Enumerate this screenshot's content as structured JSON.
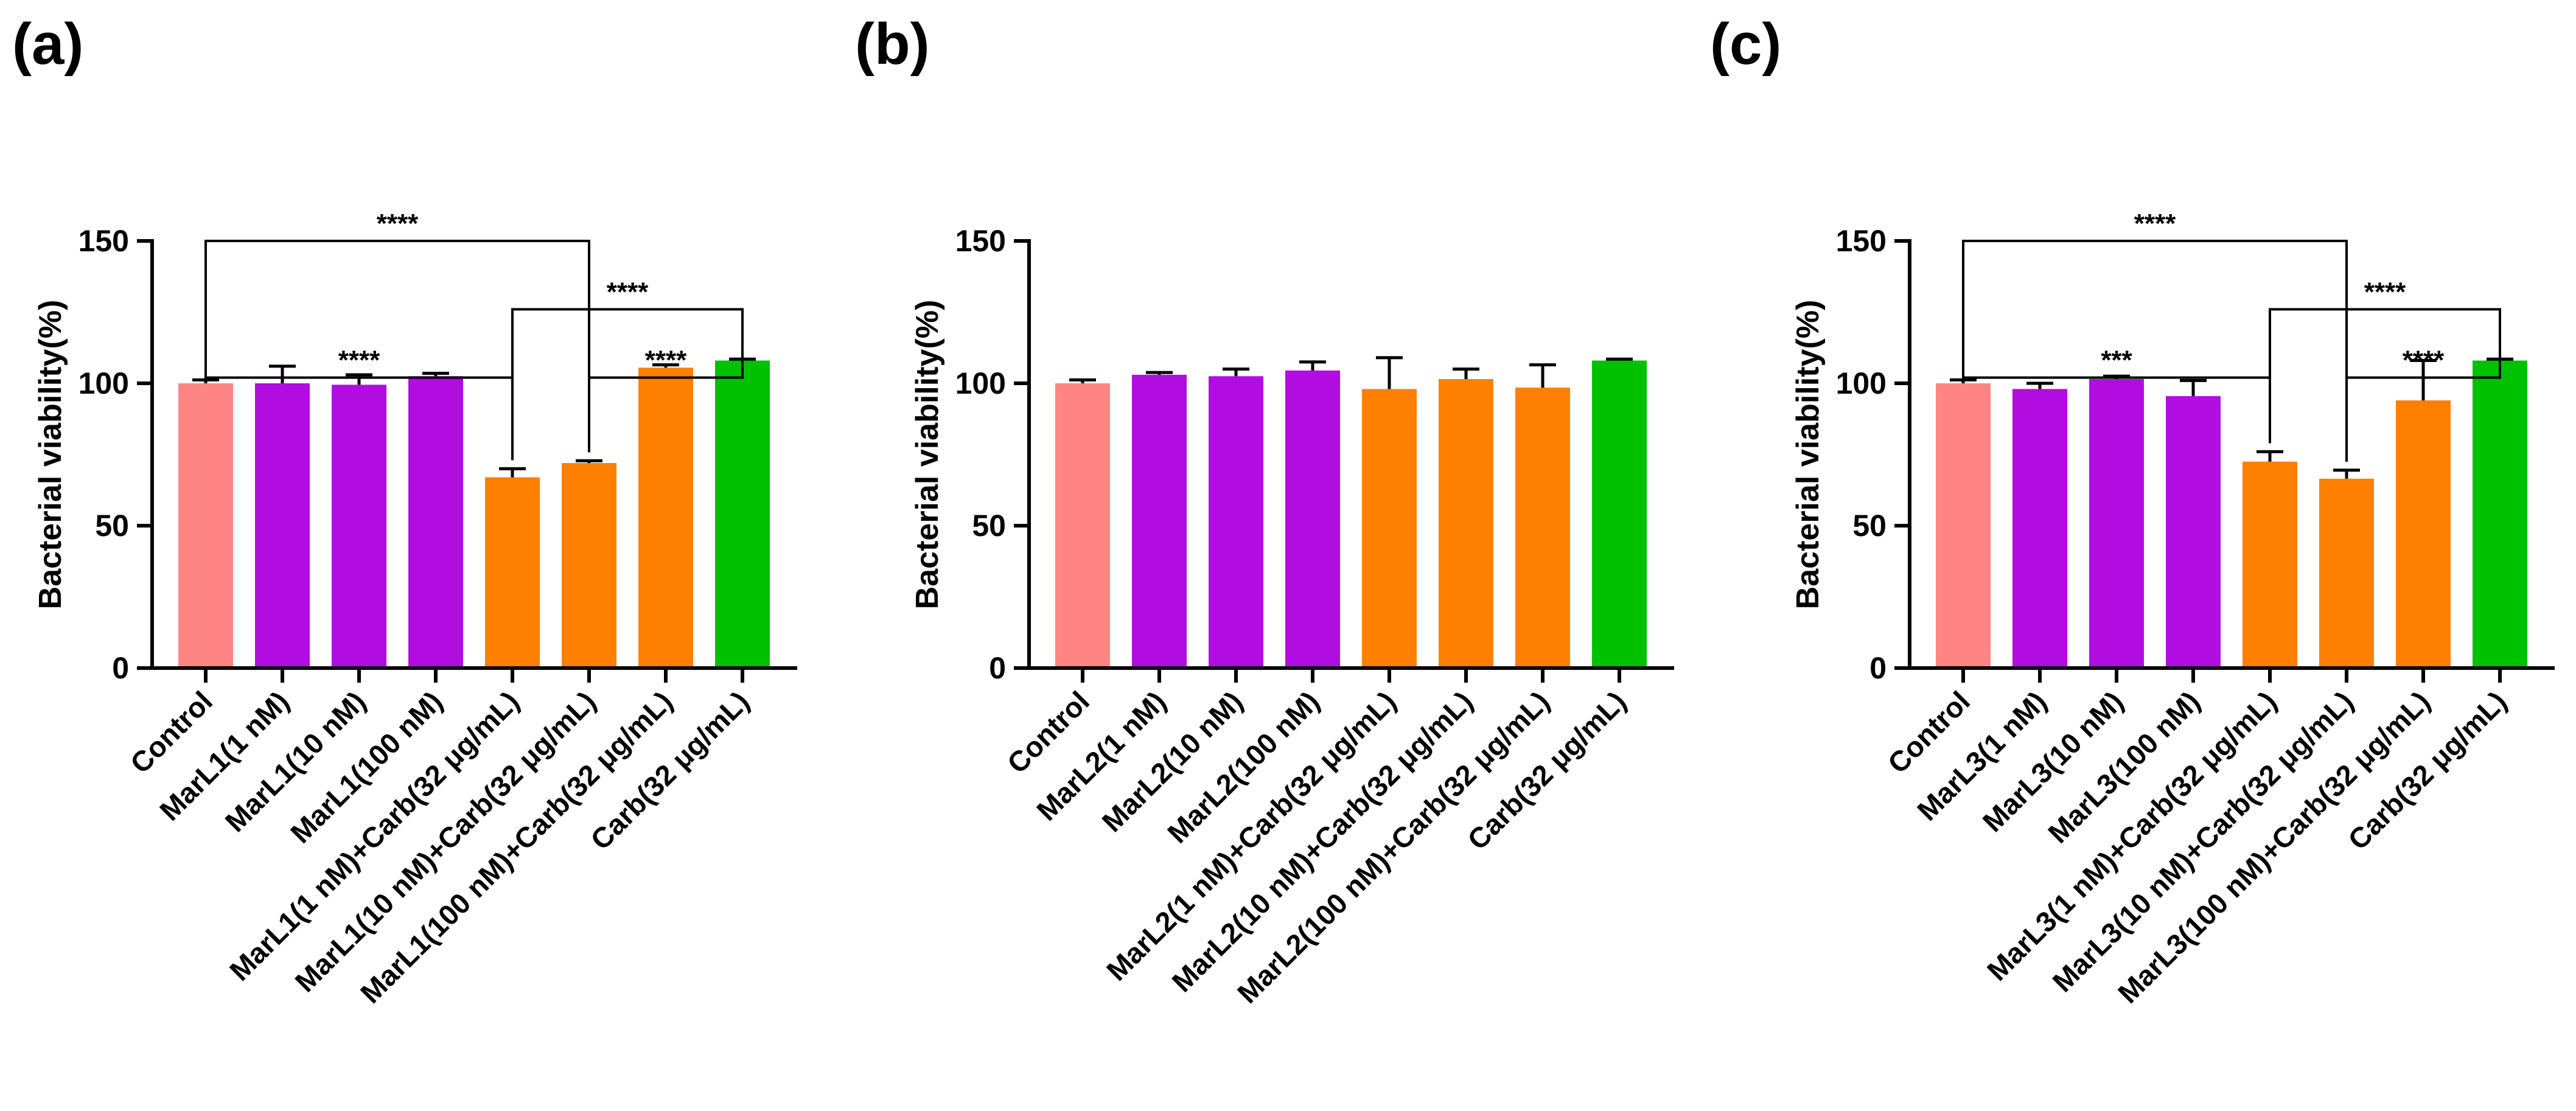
{
  "colors": {
    "control": "#FF8585",
    "marl": "#B10DE1",
    "combo": "#FF8000",
    "carb": "#00C100",
    "axis": "#000000"
  },
  "chart_data": [
    {
      "panel": "(a)",
      "type": "bar",
      "ylabel": "Bacterial viability(%)",
      "ylim": [
        0,
        150
      ],
      "yticks": [
        "0",
        "50",
        "100",
        "150"
      ],
      "categories": [
        "Control",
        "MarL1(1 nM)",
        "MarL1(10 nM)",
        "MarL1(100 nM)",
        "MarL1(1 nM)+Carb(32 μg/mL)",
        "MarL1(10 nM)+Carb(32 μg/mL)",
        "MarL1(100 nM)+Carb(32 μg/mL)",
        "Carb(32 μg/mL)"
      ],
      "values": [
        100,
        100,
        99.5,
        102.5,
        67,
        72,
        105.5,
        108
      ],
      "errors": [
        1.2,
        6,
        3.5,
        1,
        3,
        0.8,
        1,
        0.5
      ],
      "groups": [
        "control",
        "marl",
        "marl",
        "marl",
        "combo",
        "combo",
        "combo",
        "carb"
      ],
      "significance": [
        {
          "from": 0,
          "to": 5,
          "label": "****",
          "level": 150
        },
        {
          "from": 4,
          "to": 7,
          "label": "****",
          "level": 126
        },
        {
          "from": 0,
          "to": 4,
          "label": "****",
          "level": 102
        },
        {
          "from": 5,
          "to": 7,
          "label": "****",
          "level": 102
        }
      ]
    },
    {
      "panel": "(b)",
      "type": "bar",
      "ylabel": "Bacterial viability(%)",
      "ylim": [
        0,
        150
      ],
      "yticks": [
        "0",
        "50",
        "100",
        "150"
      ],
      "categories": [
        "Control",
        "MarL2(1 nM)",
        "MarL2(10 nM)",
        "MarL2(100 nM)",
        "MarL2(1 nM)+Carb(32 μg/mL)",
        "MarL2(10 nM)+Carb(32 μg/mL)",
        "MarL2(100 nM)+Carb(32 μg/mL)",
        "Carb(32 μg/mL)"
      ],
      "values": [
        100,
        103,
        102.5,
        104.5,
        98,
        101.5,
        98.5,
        108
      ],
      "errors": [
        1.2,
        0.8,
        2.5,
        3,
        11,
        3.5,
        8,
        0.5
      ],
      "groups": [
        "control",
        "marl",
        "marl",
        "marl",
        "combo",
        "combo",
        "combo",
        "carb"
      ],
      "significance": []
    },
    {
      "panel": "(c)",
      "type": "bar",
      "ylabel": "Bacterial viability(%)",
      "ylim": [
        0,
        150
      ],
      "yticks": [
        "0",
        "50",
        "100",
        "150"
      ],
      "categories": [
        "Control",
        "MarL3(1 nM)",
        "MarL3(10 nM)",
        "MarL3(100 nM)",
        "MarL3(1 nM)+Carb(32 μg/mL)",
        "MarL3(10 nM)+Carb(32 μg/mL)",
        "MarL3(100 nM)+Carb(32 μg/mL)",
        "Carb(32 μg/mL)"
      ],
      "values": [
        100,
        98,
        101.5,
        95.5,
        72.5,
        66.5,
        94,
        108
      ],
      "errors": [
        1.2,
        2,
        1,
        5.5,
        3.5,
        3,
        14,
        0.5
      ],
      "groups": [
        "control",
        "marl",
        "marl",
        "marl",
        "combo",
        "combo",
        "combo",
        "carb"
      ],
      "significance": [
        {
          "from": 0,
          "to": 5,
          "label": "****",
          "level": 150
        },
        {
          "from": 4,
          "to": 7,
          "label": "****",
          "level": 126
        },
        {
          "from": 0,
          "to": 4,
          "label": "***",
          "level": 102
        },
        {
          "from": 5,
          "to": 7,
          "label": "****",
          "level": 102
        }
      ]
    }
  ]
}
